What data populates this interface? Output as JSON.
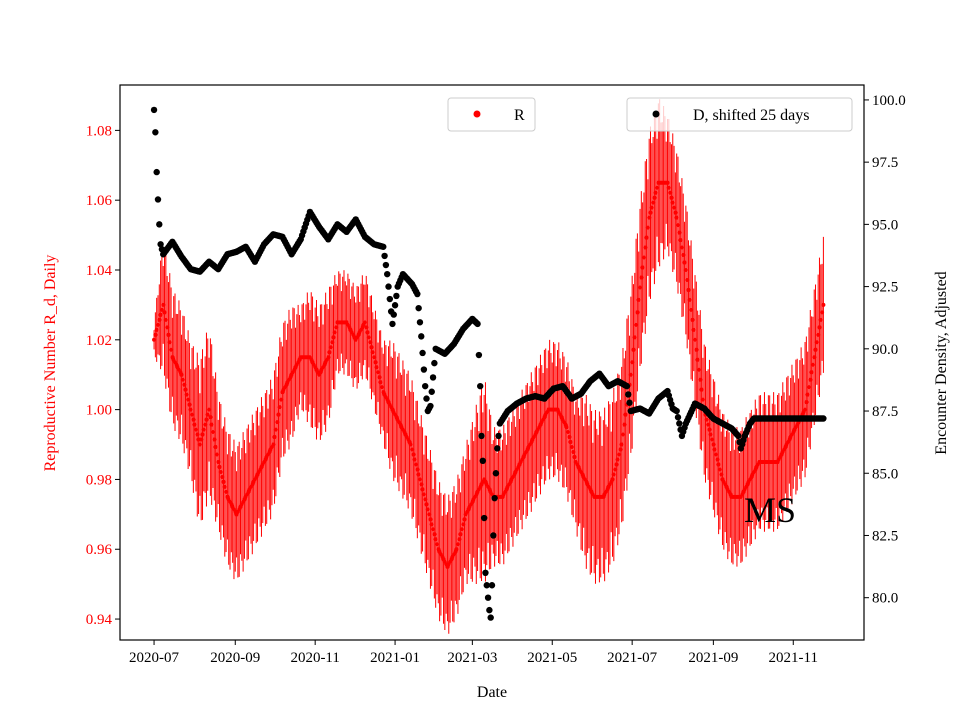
{
  "chart_data": {
    "type": "scatter",
    "xlabel": "Date",
    "ylabel_left": "Reproductive Number R_d, Daily",
    "ylabel_right": "Encounter Density, Adjusted",
    "x_ticks": [
      "2020-07",
      "2020-09",
      "2020-11",
      "2021-01",
      "2021-03",
      "2021-05",
      "2021-07",
      "2021-09",
      "2021-11"
    ],
    "y_left_ticks": [
      "0.94",
      "0.96",
      "0.98",
      "1.00",
      "1.02",
      "1.04",
      "1.06",
      "1.08"
    ],
    "y_right_ticks": [
      "80.0",
      "82.5",
      "85.0",
      "87.5",
      "90.0",
      "92.5",
      "95.0",
      "97.5",
      "100.0"
    ],
    "ylim_left": [
      0.934,
      1.093
    ],
    "ylim_right": [
      78.3,
      100.6
    ],
    "xlim": [
      "2020-06-05",
      "2021-12-25"
    ],
    "annotation": "MS",
    "colors": {
      "R": "#ff0000",
      "D": "#000000",
      "left_axis": "#ff0000"
    },
    "series": [
      {
        "name": "R",
        "legend": "R",
        "legend_placement": "top-center",
        "start": "2020-07-01",
        "step_days": 7,
        "values": [
          1.02,
          1.03,
          1.015,
          1.01,
          1.0,
          0.99,
          1.0,
          0.985,
          0.975,
          0.97,
          0.975,
          0.98,
          0.985,
          0.99,
          1.005,
          1.01,
          1.015,
          1.015,
          1.01,
          1.015,
          1.025,
          1.025,
          1.02,
          1.025,
          1.015,
          1.005,
          1.0,
          0.995,
          0.99,
          0.98,
          0.97,
          0.96,
          0.955,
          0.96,
          0.97,
          0.975,
          0.98,
          0.975,
          0.975,
          0.98,
          0.985,
          0.99,
          0.995,
          1.0,
          1.0,
          0.995,
          0.985,
          0.98,
          0.975,
          0.975,
          0.98,
          0.99,
          1.01,
          1.035,
          1.055,
          1.065,
          1.065,
          1.055,
          1.04,
          1.02,
          1.0,
          0.99,
          0.98,
          0.975,
          0.975,
          0.98,
          0.985,
          0.985,
          0.985,
          0.99,
          0.995,
          1.0,
          1.015,
          1.03
        ],
        "errors": [
          0.005,
          0.02,
          0.02,
          0.02,
          0.02,
          0.025,
          0.025,
          0.02,
          0.02,
          0.02,
          0.02,
          0.02,
          0.02,
          0.02,
          0.02,
          0.02,
          0.015,
          0.02,
          0.02,
          0.02,
          0.015,
          0.015,
          0.015,
          0.015,
          0.015,
          0.015,
          0.02,
          0.02,
          0.02,
          0.02,
          0.02,
          0.02,
          0.02,
          0.02,
          0.02,
          0.025,
          0.03,
          0.02,
          0.02,
          0.02,
          0.02,
          0.02,
          0.02,
          0.02,
          0.02,
          0.02,
          0.02,
          0.025,
          0.025,
          0.025,
          0.025,
          0.025,
          0.025,
          0.025,
          0.025,
          0.025,
          0.02,
          0.02,
          0.02,
          0.02,
          0.02,
          0.02,
          0.02,
          0.02,
          0.02,
          0.02,
          0.02,
          0.02,
          0.02,
          0.02,
          0.02,
          0.02,
          0.02,
          0.02
        ]
      },
      {
        "name": "D",
        "legend": "D, shifted 25 days",
        "legend_placement": "top-right",
        "points": [
          [
            "2020-07-01",
            99.6
          ],
          [
            "2020-07-02",
            98.7
          ],
          [
            "2020-07-03",
            97.1
          ],
          [
            "2020-07-04",
            96.0
          ],
          [
            "2020-07-05",
            95.0
          ],
          [
            "2020-07-06",
            94.2
          ],
          [
            "2020-07-08",
            93.8
          ],
          [
            "2020-07-15",
            94.3
          ],
          [
            "2020-07-22",
            93.7
          ],
          [
            "2020-07-29",
            93.2
          ],
          [
            "2020-08-05",
            93.1
          ],
          [
            "2020-08-12",
            93.5
          ],
          [
            "2020-08-19",
            93.2
          ],
          [
            "2020-08-26",
            93.8
          ],
          [
            "2020-09-02",
            93.9
          ],
          [
            "2020-09-09",
            94.1
          ],
          [
            "2020-09-16",
            93.5
          ],
          [
            "2020-09-23",
            94.2
          ],
          [
            "2020-09-30",
            94.6
          ],
          [
            "2020-10-07",
            94.5
          ],
          [
            "2020-10-14",
            93.8
          ],
          [
            "2020-10-21",
            94.4
          ],
          [
            "2020-10-28",
            95.5
          ],
          [
            "2020-11-04",
            94.9
          ],
          [
            "2020-11-11",
            94.4
          ],
          [
            "2020-11-18",
            95.0
          ],
          [
            "2020-11-25",
            94.7
          ],
          [
            "2020-12-02",
            95.2
          ],
          [
            "2020-12-09",
            94.5
          ],
          [
            "2020-12-16",
            94.2
          ],
          [
            "2020-12-23",
            94.1
          ],
          [
            "2020-12-26",
            93.0
          ],
          [
            "2020-12-28",
            92.0
          ],
          [
            "2020-12-30",
            91.0
          ],
          [
            "2021-01-03",
            92.5
          ],
          [
            "2021-01-07",
            93.0
          ],
          [
            "2021-01-14",
            92.6
          ],
          [
            "2021-01-18",
            92.2
          ],
          [
            "2021-01-21",
            90.5
          ],
          [
            "2021-01-24",
            88.5
          ],
          [
            "2021-01-26",
            87.5
          ],
          [
            "2021-01-28",
            87.7
          ],
          [
            "2021-02-01",
            90.0
          ],
          [
            "2021-02-08",
            89.8
          ],
          [
            "2021-02-15",
            90.2
          ],
          [
            "2021-02-22",
            90.8
          ],
          [
            "2021-03-01",
            91.2
          ],
          [
            "2021-03-05",
            91.0
          ],
          [
            "2021-03-07",
            88.5
          ],
          [
            "2021-03-08",
            86.5
          ],
          [
            "2021-03-09",
            85.5
          ],
          [
            "2021-03-10",
            83.2
          ],
          [
            "2021-03-11",
            81.0
          ],
          [
            "2021-03-14",
            79.5
          ],
          [
            "2021-03-15",
            79.2
          ],
          [
            "2021-03-16",
            80.5
          ],
          [
            "2021-03-17",
            82.5
          ],
          [
            "2021-03-18",
            84.0
          ],
          [
            "2021-03-19",
            85.0
          ],
          [
            "2021-03-20",
            86.0
          ],
          [
            "2021-03-22",
            87.0
          ],
          [
            "2021-03-28",
            87.5
          ],
          [
            "2021-04-04",
            87.8
          ],
          [
            "2021-04-11",
            88.0
          ],
          [
            "2021-04-18",
            88.1
          ],
          [
            "2021-04-25",
            88.0
          ],
          [
            "2021-05-02",
            88.4
          ],
          [
            "2021-05-09",
            88.5
          ],
          [
            "2021-05-16",
            88.0
          ],
          [
            "2021-05-23",
            88.2
          ],
          [
            "2021-05-30",
            88.7
          ],
          [
            "2021-06-06",
            89.0
          ],
          [
            "2021-06-13",
            88.5
          ],
          [
            "2021-06-20",
            88.7
          ],
          [
            "2021-06-27",
            88.5
          ],
          [
            "2021-06-30",
            87.5
          ],
          [
            "2021-07-07",
            87.6
          ],
          [
            "2021-07-14",
            87.4
          ],
          [
            "2021-07-21",
            88.0
          ],
          [
            "2021-07-28",
            88.3
          ],
          [
            "2021-08-01",
            87.6
          ],
          [
            "2021-08-04",
            87.5
          ],
          [
            "2021-08-08",
            86.5
          ],
          [
            "2021-08-11",
            87.0
          ],
          [
            "2021-08-18",
            87.8
          ],
          [
            "2021-08-25",
            87.6
          ],
          [
            "2021-09-01",
            87.2
          ],
          [
            "2021-09-08",
            87.0
          ],
          [
            "2021-09-15",
            86.8
          ],
          [
            "2021-09-20",
            86.5
          ],
          [
            "2021-09-22",
            86.0
          ],
          [
            "2021-09-25",
            86.5
          ],
          [
            "2021-09-29",
            87.0
          ],
          [
            "2021-10-02",
            87.2
          ],
          [
            "2021-11-24",
            87.2
          ]
        ]
      }
    ]
  }
}
